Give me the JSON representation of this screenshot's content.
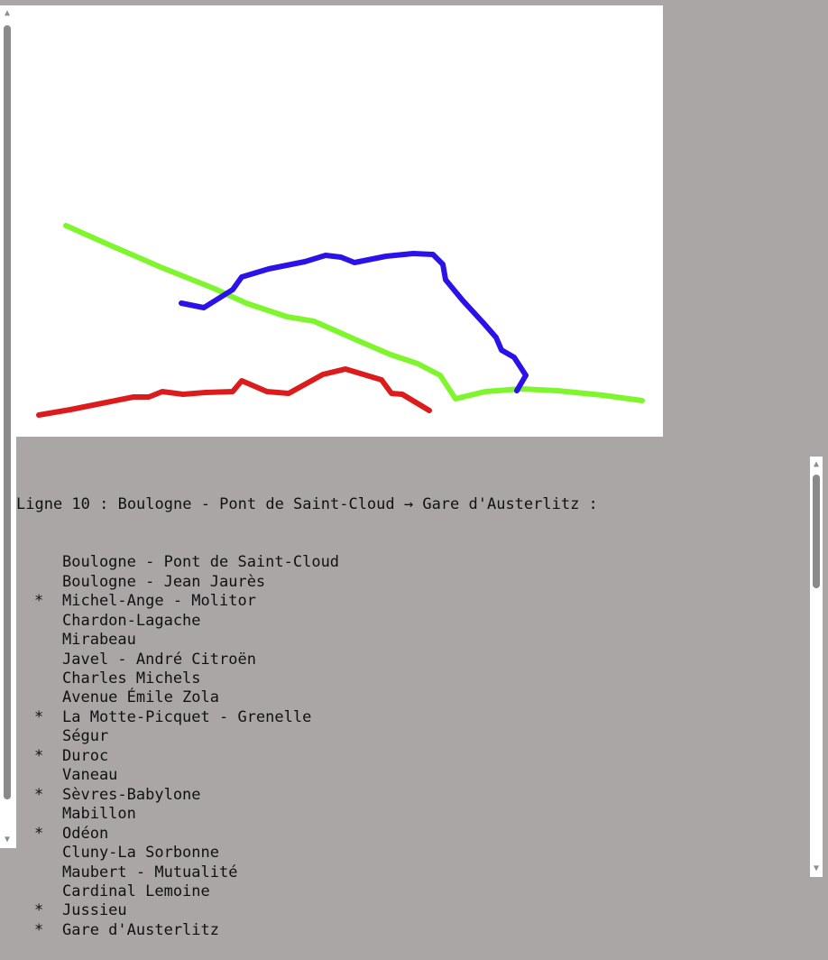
{
  "map": {
    "lines": [
      {
        "name": "green-line",
        "color": "#7ef52c"
      },
      {
        "name": "blue-line",
        "color": "#2a12e8"
      },
      {
        "name": "red-line",
        "color": "#dc1c1c"
      }
    ]
  },
  "listing": {
    "title": "Ligne 10 : Boulogne - Pont de Saint-Cloud → Gare d'Austerlitz :",
    "stations": [
      {
        "marker": "",
        "name": "Boulogne - Pont de Saint-Cloud"
      },
      {
        "marker": "",
        "name": "Boulogne - Jean Jaurès"
      },
      {
        "marker": "*",
        "name": "Michel-Ange - Molitor"
      },
      {
        "marker": "",
        "name": "Chardon-Lagache"
      },
      {
        "marker": "",
        "name": "Mirabeau"
      },
      {
        "marker": "",
        "name": "Javel - André Citroën"
      },
      {
        "marker": "",
        "name": "Charles Michels"
      },
      {
        "marker": "",
        "name": "Avenue Émile Zola"
      },
      {
        "marker": "*",
        "name": "La Motte-Picquet - Grenelle"
      },
      {
        "marker": "",
        "name": "Ségur"
      },
      {
        "marker": "*",
        "name": "Duroc"
      },
      {
        "marker": "",
        "name": "Vaneau"
      },
      {
        "marker": "*",
        "name": "Sèvres-Babylone"
      },
      {
        "marker": "",
        "name": "Mabillon"
      },
      {
        "marker": "*",
        "name": "Odéon"
      },
      {
        "marker": "",
        "name": "Cluny-La Sorbonne"
      },
      {
        "marker": "",
        "name": "Maubert - Mutualité"
      },
      {
        "marker": "",
        "name": "Cardinal Lemoine"
      },
      {
        "marker": "*",
        "name": "Jussieu"
      },
      {
        "marker": "*",
        "name": "Gare d'Austerlitz"
      }
    ]
  },
  "icons": {
    "scroll_up": "scroll-up-arrow-icon",
    "scroll_down": "scroll-down-arrow-icon"
  }
}
